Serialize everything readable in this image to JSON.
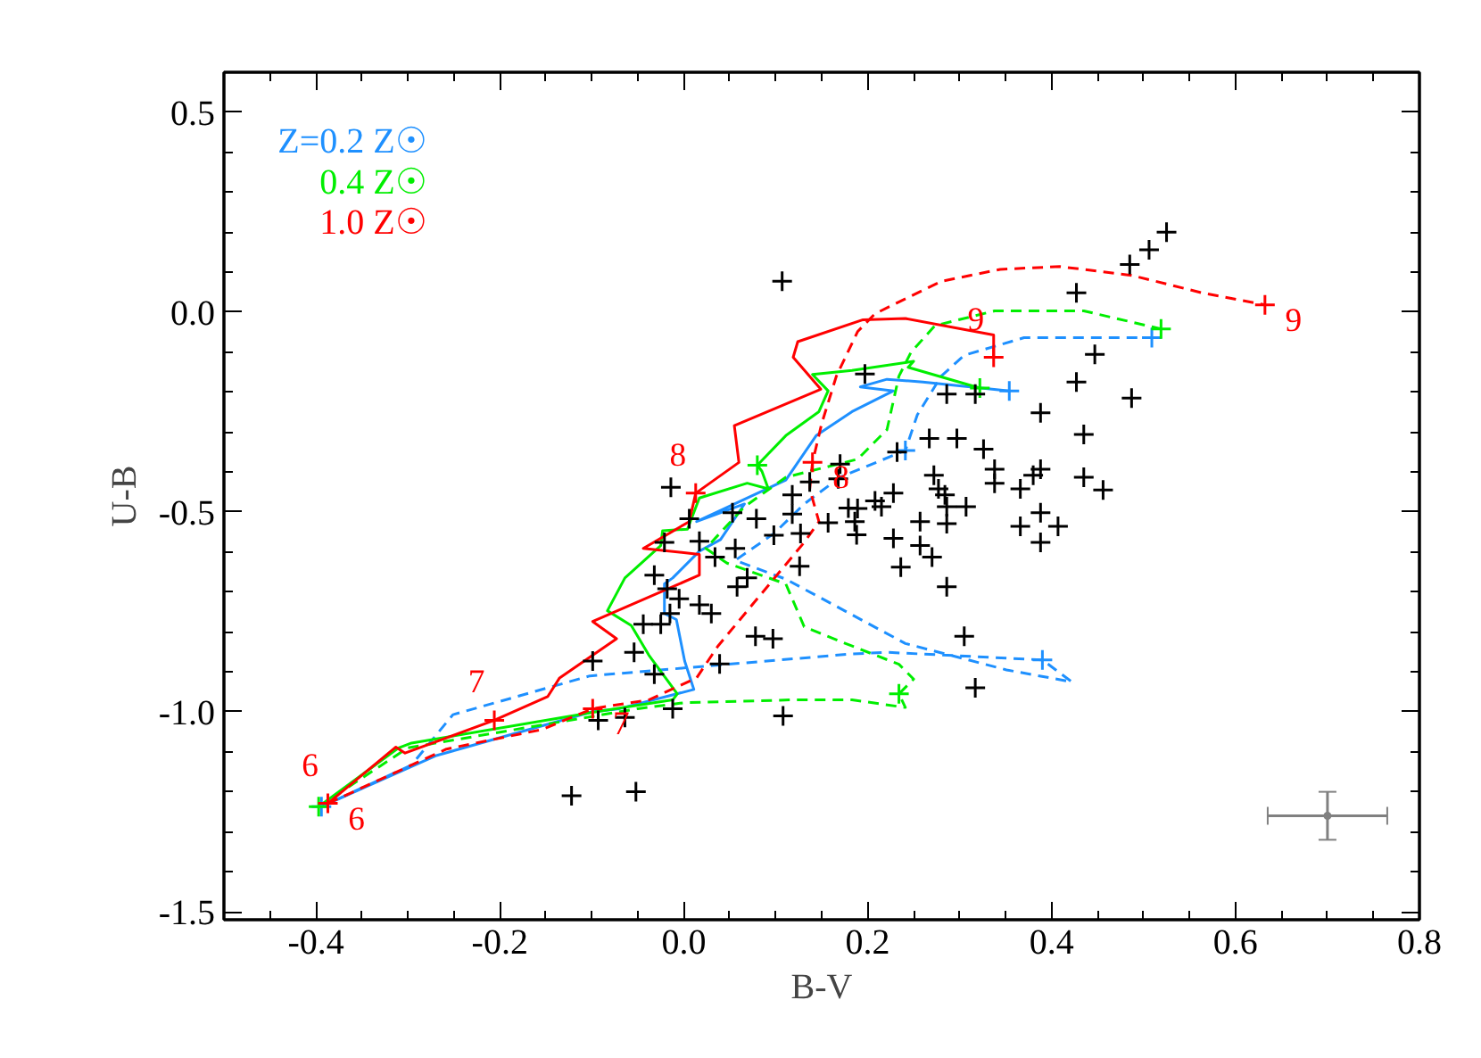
{
  "chart_data": {
    "type": "line",
    "xlabel": "B-V",
    "ylabel": "U-B",
    "xlim": [
      -0.5,
      0.8
    ],
    "ylim": [
      -1.52,
      0.6
    ],
    "xticks": [
      {
        "value": -0.4,
        "label": "-0.4"
      },
      {
        "value": -0.2,
        "label": "-0.2"
      },
      {
        "value": 0,
        "label": "0.0"
      },
      {
        "value": 0.2,
        "label": "0.2"
      },
      {
        "value": 0.4,
        "label": "0.4"
      },
      {
        "value": 0.6,
        "label": "0.6"
      },
      {
        "value": 0.8,
        "label": "0.8"
      }
    ],
    "yticks": [
      {
        "value": -1.5,
        "label": "-1.5"
      },
      {
        "value": -1.0,
        "label": "-1.0"
      },
      {
        "value": -0.5,
        "label": "-0.5"
      },
      {
        "value": 0,
        "label": "0.0"
      },
      {
        "value": 0.5,
        "label": "0.5"
      }
    ],
    "grid": false,
    "series": [
      {
        "name": "Z=0.2 Z☉",
        "color": "#1e90ff",
        "line_style": "solid",
        "x": [
          -0.394,
          -0.27,
          -0.1,
          -0.07,
          0.011,
          0.001,
          -0.008,
          -0.021,
          -0.021,
          -0.012,
          0.017,
          0.04,
          0.066,
          0.014,
          0.111,
          0.144,
          0.183,
          0.228,
          0.192,
          0.221,
          0.26,
          0.354
        ],
        "values": [
          -1.237,
          -1.11,
          -1.0,
          -0.992,
          -0.944,
          -0.873,
          -0.769,
          -0.754,
          -0.68,
          -0.665,
          -0.598,
          -0.569,
          -0.48,
          -0.524,
          -0.42,
          -0.309,
          -0.249,
          -0.197,
          -0.187,
          -0.168,
          -0.175,
          -0.197
        ]
      },
      {
        "color": "#1e90ff",
        "line_style": "dashed",
        "x": [
          -0.394,
          -0.296,
          -0.251,
          -0.102,
          0.183,
          0.221,
          0.39,
          0.422,
          0.351,
          0.241,
          0.111,
          0.056,
          0.098,
          0.131,
          0.17,
          0.241,
          0.254,
          0.28,
          0.305,
          0.37,
          0.509
        ],
        "values": [
          -1.237,
          -1.133,
          -1.007,
          -0.91,
          -0.855,
          -0.851,
          -0.87,
          -0.925,
          -0.895,
          -0.829,
          -0.668,
          -0.621,
          -0.554,
          -0.48,
          -0.413,
          -0.346,
          -0.257,
          -0.16,
          -0.108,
          -0.064,
          -0.064
        ]
      },
      {
        "name": "0.4 Z☉",
        "color": "#00ee00",
        "line_style": "solid",
        "x": [
          -0.397,
          -0.31,
          -0.296,
          -0.093,
          -0.012,
          -0.007,
          -0.038,
          -0.057,
          -0.083,
          -0.064,
          -0.025,
          -0.023,
          0.004,
          0.017,
          0.069,
          0.092,
          0.085,
          0.08,
          0.111,
          0.147,
          0.157,
          0.14,
          0.183,
          0.25,
          0.244,
          0.322
        ],
        "values": [
          -1.237,
          -1.09,
          -1.078,
          -0.999,
          -0.97,
          -0.955,
          -0.858,
          -0.784,
          -0.747,
          -0.665,
          -0.584,
          -0.547,
          -0.543,
          -0.465,
          -0.428,
          -0.442,
          -0.398,
          -0.383,
          -0.309,
          -0.249,
          -0.197,
          -0.156,
          -0.146,
          -0.123,
          -0.138,
          -0.19
        ]
      },
      {
        "color": "#00ee00",
        "line_style": "dashed",
        "x": [
          -0.397,
          -0.3,
          -0.05,
          0.001,
          0.118,
          0.183,
          0.241,
          0.234,
          0.25,
          0.234,
          0.176,
          0.131,
          0.111,
          0.047,
          0.024,
          0.066,
          0.111,
          0.189,
          0.221,
          0.234,
          0.247,
          0.273,
          0.338,
          0.435,
          0.519
        ],
        "values": [
          -1.237,
          -1.09,
          -0.992,
          -0.977,
          -0.97,
          -0.97,
          -0.989,
          -0.955,
          -0.918,
          -0.881,
          -0.829,
          -0.787,
          -0.68,
          -0.628,
          -0.591,
          -0.487,
          -0.413,
          -0.368,
          -0.294,
          -0.16,
          -0.101,
          -0.034,
          0.003,
          0.003,
          -0.042
        ]
      },
      {
        "name": "1.0 Z☉",
        "color": "#ff0000",
        "line_style": "solid",
        "x": [
          -0.387,
          -0.313,
          -0.303,
          -0.206,
          -0.148,
          -0.135,
          -0.073,
          -0.099,
          0.017,
          0.017,
          -0.044,
          0.006,
          0.013,
          0.06,
          0.055,
          0.149,
          0.119,
          0.124,
          0.195,
          0.241,
          0.337,
          0.337
        ],
        "values": [
          -1.229,
          -1.088,
          -1.103,
          -1.021,
          -0.962,
          -0.915,
          -0.817,
          -0.774,
          -0.658,
          -0.606,
          -0.591,
          -0.524,
          -0.453,
          -0.376,
          -0.284,
          -0.193,
          -0.113,
          -0.074,
          -0.019,
          -0.016,
          -0.057,
          -0.113
        ]
      },
      {
        "color": "#ff0000",
        "line_style": "dashed",
        "x": [
          -0.387,
          -0.258,
          -0.154,
          -0.099,
          -0.038,
          0.014,
          0.037,
          0.072,
          0.131,
          0.147,
          0.137,
          0.14,
          0.15,
          0.166,
          0.189,
          0.208,
          0.28,
          0.344,
          0.409,
          0.487,
          0.564,
          0.632
        ],
        "values": [
          -1.229,
          -1.093,
          -1.044,
          -0.992,
          -0.97,
          -0.915,
          -0.836,
          -0.739,
          -0.576,
          -0.524,
          -0.442,
          -0.376,
          -0.279,
          -0.16,
          -0.049,
          -0.004,
          0.077,
          0.107,
          0.114,
          0.092,
          0.048,
          0.018
        ]
      },
      {
        "color": "#1e90ff",
        "type": "scatter",
        "marker": "cross",
        "x": [
          -0.394,
          0.241,
          0.39,
          0.354,
          0.509
        ],
        "values": [
          -1.237,
          -0.346,
          -0.87,
          -0.197,
          -0.064
        ]
      },
      {
        "color": "#00ee00",
        "type": "scatter",
        "marker": "cross",
        "x": [
          -0.397,
          0.08,
          0.234,
          0.322,
          0.519
        ],
        "values": [
          -1.237,
          -0.383,
          -0.955,
          -0.19,
          -0.042
        ]
      },
      {
        "color": "#ff0000",
        "type": "scatter",
        "marker": "cross",
        "x": [
          -0.387,
          -0.206,
          -0.099,
          0.013,
          0.14,
          0.337,
          0.632
        ],
        "values": [
          -1.229,
          -1.021,
          -0.992,
          -0.453,
          -0.376,
          -0.113,
          0.018
        ]
      },
      {
        "color": "#000000",
        "type": "scatter",
        "marker": "cross",
        "x": [
          0.107,
          0.525,
          0.506,
          0.485,
          0.427,
          0.447,
          0.197,
          0.286,
          0.317,
          0.427,
          0.487,
          0.388,
          0.267,
          0.297,
          0.435,
          0.326,
          0.232,
          0.338,
          0.338,
          0.272,
          0.277,
          0.388,
          0.38,
          0.366,
          0.435,
          0.456,
          -0.014,
          0.228,
          0.208,
          0.215,
          0.179,
          0.189,
          0.284,
          0.286,
          0.307,
          0.388,
          0.366,
          0.407,
          0.388,
          0.257,
          0.286,
          0.186,
          0.188,
          0.157,
          0.228,
          0.257,
          0.27,
          0.236,
          0.286,
          0.126,
          0.17,
          0.168,
          0.137,
          0.118,
          0.118,
          0.127,
          0.098,
          0.079,
          0.053,
          0.006,
          0.017,
          0.034,
          0.056,
          -0.021,
          0.069,
          0.058,
          -0.032,
          -0.018,
          -0.005,
          0.017,
          0.03,
          -0.015,
          -0.044,
          -0.025,
          -0.054,
          0.078,
          0.097,
          0.305,
          0.317,
          -0.099,
          -0.032,
          0.039,
          -0.012,
          -0.093,
          -0.064,
          0.108,
          -0.122,
          -0.052
        ],
        "values": [
          0.077,
          0.2,
          0.156,
          0.119,
          0.048,
          -0.106,
          -0.155,
          -0.205,
          -0.205,
          -0.175,
          -0.215,
          -0.252,
          -0.316,
          -0.316,
          -0.306,
          -0.343,
          -0.35,
          -0.393,
          -0.428,
          -0.408,
          -0.442,
          -0.393,
          -0.408,
          -0.442,
          -0.413,
          -0.445,
          -0.438,
          -0.453,
          -0.472,
          -0.487,
          -0.49,
          -0.491,
          -0.457,
          -0.487,
          -0.487,
          -0.502,
          -0.536,
          -0.536,
          -0.576,
          -0.524,
          -0.529,
          -0.524,
          -0.557,
          -0.527,
          -0.566,
          -0.584,
          -0.613,
          -0.638,
          -0.687,
          -0.636,
          -0.38,
          -0.417,
          -0.425,
          -0.457,
          -0.505,
          -0.554,
          -0.558,
          -0.517,
          -0.502,
          -0.517,
          -0.573,
          -0.613,
          -0.591,
          -0.576,
          -0.665,
          -0.687,
          -0.658,
          -0.692,
          -0.717,
          -0.732,
          -0.754,
          -0.754,
          -0.781,
          -0.781,
          -0.851,
          -0.811,
          -0.817,
          -0.811,
          -0.94,
          -0.873,
          -0.906,
          -0.88,
          -0.992,
          -1.021,
          -1.014,
          -1.01,
          -1.21,
          -1.2
        ]
      },
      {
        "color": "#808080",
        "type": "scatter",
        "marker": "circle",
        "x": [
          0.7
        ],
        "values": [
          -1.26
        ],
        "errors": [
          0.06
        ],
        "xerrors": [
          0.065
        ]
      }
    ],
    "annotations": [
      {
        "text": "6",
        "x": -0.387,
        "y": -1.229
      },
      {
        "text": "6",
        "x": -0.387,
        "y": -1.229
      },
      {
        "text": "7",
        "x": -0.206,
        "y": -1.021
      },
      {
        "text": "7",
        "x": -0.099,
        "y": -0.992
      },
      {
        "text": "8",
        "x": 0.013,
        "y": -0.453
      },
      {
        "text": "8",
        "x": 0.14,
        "y": -0.376
      },
      {
        "text": "9",
        "x": 0.337,
        "y": -0.113
      },
      {
        "text": "9",
        "x": 0.632,
        "y": 0.018
      }
    ]
  }
}
